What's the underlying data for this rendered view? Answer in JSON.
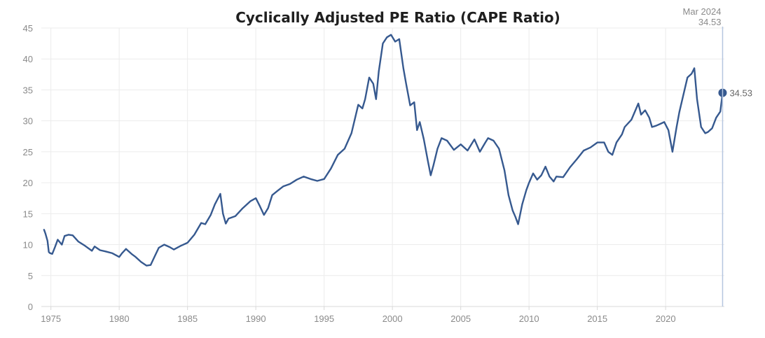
{
  "chart_data": {
    "type": "line",
    "title": "Cyclically Adjusted PE Ratio (CAPE Ratio)",
    "xlabel": "",
    "ylabel": "",
    "xlim": [
      1974.3,
      2024.3
    ],
    "ylim": [
      0,
      45
    ],
    "grid": true,
    "y_ticks": [
      "0",
      "5",
      "10",
      "15",
      "20",
      "25",
      "30",
      "35",
      "40",
      "45"
    ],
    "x_ticks": [
      "1975",
      "1980",
      "1985",
      "1990",
      "1995",
      "2000",
      "2005",
      "2010",
      "2015",
      "2020"
    ],
    "annotation": {
      "date": "Mar 2024",
      "value": "34.53"
    },
    "last_value_label": "34.53",
    "colors": {
      "line": "#36598f",
      "marker_line": "#b5c6e0"
    },
    "series": [
      {
        "x": [
          1974.5,
          1974.6,
          1974.75,
          1974.85,
          1974.95,
          1975.1,
          1975.3,
          1975.5,
          1975.8,
          1976.0,
          1976.3,
          1976.6,
          1977.0,
          1977.5,
          1978.0,
          1978.2,
          1978.6,
          1979.0,
          1979.5,
          1980.0,
          1980.2,
          1980.5,
          1980.9,
          1981.2,
          1981.6,
          1982.0,
          1982.3,
          1982.6,
          1982.9,
          1983.3,
          1983.7,
          1984.0,
          1984.5,
          1985.0,
          1985.5,
          1986.0,
          1986.3,
          1986.7,
          1987.0,
          1987.4,
          1987.6,
          1987.8,
          1988.0,
          1988.5,
          1989.0,
          1989.6,
          1990.0,
          1990.3,
          1990.6,
          1990.9,
          1991.2,
          1991.6,
          1992.0,
          1992.5,
          1993.0,
          1993.5,
          1994.0,
          1994.5,
          1995.0,
          1995.5,
          1996.0,
          1996.5,
          1997.0,
          1997.5,
          1997.8,
          1998.0,
          1998.3,
          1998.6,
          1998.8,
          1999.0,
          1999.3,
          1999.6,
          1999.9,
          2000.2,
          2000.5,
          2000.8,
          2001.0,
          2001.3,
          2001.6,
          2001.8,
          2002.0,
          2002.3,
          2002.6,
          2002.8,
          2003.0,
          2003.3,
          2003.6,
          2004.0,
          2004.5,
          2005.0,
          2005.5,
          2006.0,
          2006.4,
          2006.8,
          2007.0,
          2007.4,
          2007.8,
          2008.2,
          2008.5,
          2008.8,
          2009.0,
          2009.2,
          2009.5,
          2009.8,
          2010.0,
          2010.3,
          2010.6,
          2010.9,
          2011.2,
          2011.5,
          2011.8,
          2012.0,
          2012.5,
          2013.0,
          2013.5,
          2014.0,
          2014.5,
          2015.0,
          2015.5,
          2015.8,
          2016.1,
          2016.4,
          2016.8,
          2017.0,
          2017.5,
          2018.0,
          2018.2,
          2018.5,
          2018.8,
          2019.0,
          2019.3,
          2019.6,
          2019.9,
          2020.2,
          2020.5,
          2020.8,
          2021.0,
          2021.3,
          2021.6,
          2021.9,
          2022.1,
          2022.3,
          2022.6,
          2022.9,
          2023.1,
          2023.4,
          2023.7,
          2024.0,
          2024.17
        ],
        "y": [
          12.4,
          11.8,
          10.6,
          8.8,
          8.6,
          8.5,
          9.6,
          10.8,
          10.0,
          11.4,
          11.6,
          11.5,
          10.5,
          9.8,
          9.0,
          9.7,
          9.1,
          8.9,
          8.6,
          8.0,
          8.6,
          9.3,
          8.5,
          8.0,
          7.2,
          6.6,
          6.7,
          8.1,
          9.5,
          10.0,
          9.6,
          9.2,
          9.8,
          10.3,
          11.6,
          13.5,
          13.3,
          14.8,
          16.5,
          18.2,
          15.0,
          13.4,
          14.2,
          14.6,
          15.8,
          17.0,
          17.5,
          16.2,
          14.8,
          15.9,
          18.0,
          18.7,
          19.4,
          19.8,
          20.5,
          21.0,
          20.6,
          20.3,
          20.6,
          22.3,
          24.5,
          25.5,
          28.0,
          32.6,
          32.0,
          33.5,
          37.0,
          36.0,
          33.5,
          38.0,
          42.5,
          43.5,
          43.9,
          42.8,
          43.2,
          38.5,
          36.0,
          32.5,
          33.0,
          28.5,
          29.8,
          27.0,
          23.5,
          21.2,
          22.8,
          25.5,
          27.2,
          26.8,
          25.3,
          26.2,
          25.2,
          27.0,
          25.0,
          26.5,
          27.2,
          26.8,
          25.5,
          22.0,
          18.0,
          15.5,
          14.5,
          13.3,
          16.5,
          18.8,
          20.0,
          21.5,
          20.5,
          21.2,
          22.6,
          21.0,
          20.2,
          21.0,
          20.9,
          22.5,
          23.8,
          25.2,
          25.7,
          26.5,
          26.5,
          25.0,
          24.5,
          26.5,
          27.8,
          29.0,
          30.2,
          32.8,
          31.0,
          31.7,
          30.5,
          29.0,
          29.2,
          29.5,
          29.8,
          28.5,
          25.0,
          29.0,
          31.4,
          34.2,
          37.0,
          37.6,
          38.5,
          33.5,
          29.0,
          28.0,
          28.2,
          28.8,
          30.5,
          31.5,
          34.53
        ]
      }
    ]
  }
}
